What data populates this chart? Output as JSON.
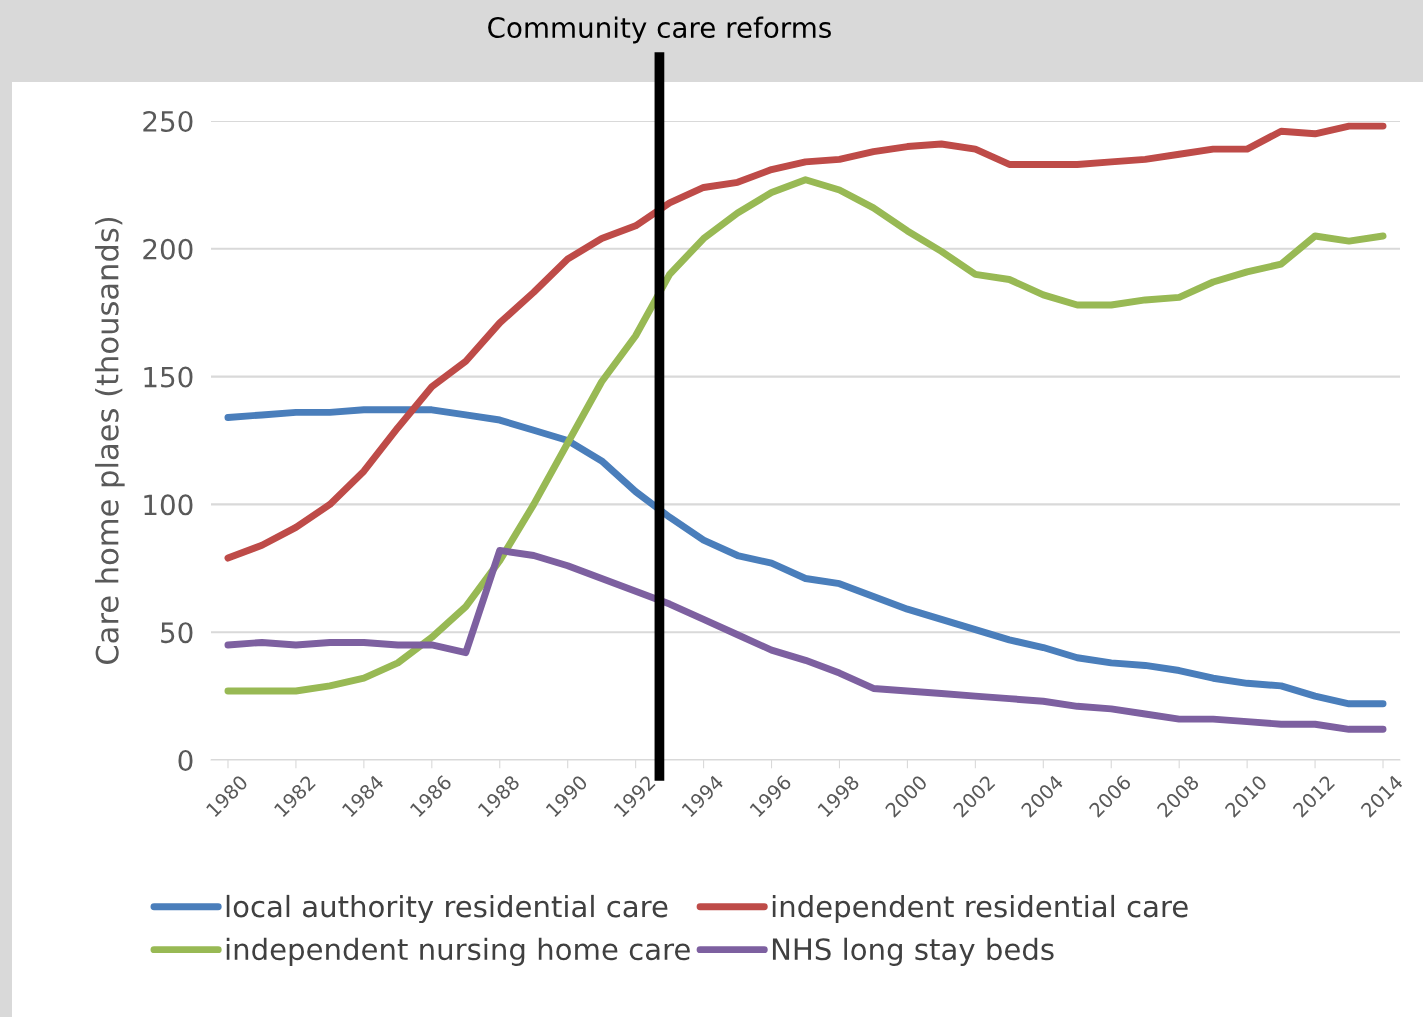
{
  "chart_data": {
    "type": "line",
    "ylabel": "Care home plaes (thousands)",
    "x": [
      1980,
      1981,
      1982,
      1983,
      1984,
      1985,
      1986,
      1987,
      1988,
      1989,
      1990,
      1991,
      1992,
      1993,
      1994,
      1995,
      1996,
      1997,
      1998,
      1999,
      2000,
      2001,
      2002,
      2003,
      2004,
      2005,
      2006,
      2007,
      2008,
      2009,
      2010,
      2011,
      2012,
      2013,
      2014
    ],
    "series": [
      {
        "name": "local authority residential care",
        "color": "#4a7ebb",
        "values": [
          134,
          135,
          136,
          136,
          137,
          137,
          137,
          135,
          133,
          129,
          125,
          117,
          105,
          95,
          86,
          80,
          77,
          71,
          69,
          64,
          59,
          55,
          51,
          47,
          44,
          40,
          38,
          37,
          35,
          32,
          30,
          29,
          25,
          22,
          22
        ]
      },
      {
        "name": "independent residential care",
        "color": "#be4b48",
        "values": [
          79,
          84,
          91,
          100,
          113,
          130,
          146,
          156,
          171,
          183,
          196,
          204,
          209,
          218,
          224,
          226,
          231,
          234,
          235,
          238,
          240,
          241,
          239,
          233,
          233,
          233,
          234,
          235,
          237,
          239,
          239,
          246,
          245,
          248,
          248
        ]
      },
      {
        "name": "independent nursing home care",
        "color": "#98b954",
        "values": [
          27,
          27,
          27,
          29,
          32,
          38,
          48,
          60,
          78,
          100,
          124,
          148,
          166,
          190,
          204,
          214,
          222,
          227,
          223,
          216,
          207,
          199,
          190,
          188,
          182,
          178,
          178,
          180,
          181,
          187,
          191,
          194,
          205,
          203,
          205
        ]
      },
      {
        "name": "NHS long stay beds",
        "color": "#7d60a0",
        "values": [
          45,
          46,
          45,
          46,
          46,
          45,
          45,
          42,
          82,
          80,
          76,
          71,
          66,
          61,
          55,
          49,
          43,
          39,
          34,
          28,
          27,
          26,
          25,
          24,
          23,
          21,
          20,
          18,
          16,
          16,
          15,
          14,
          14,
          12,
          12
        ]
      }
    ],
    "xlim": [
      1979.5,
      2014.5
    ],
    "xticks": [
      1980,
      1982,
      1984,
      1986,
      1988,
      1990,
      1992,
      1994,
      1996,
      1998,
      2000,
      2002,
      2004,
      2006,
      2008,
      2010,
      2012,
      2014
    ],
    "ylim": [
      0,
      250
    ],
    "yticks": [
      0,
      50,
      100,
      150,
      200,
      250
    ],
    "ref_lines": [
      {
        "axis": "x",
        "value": 1992.7,
        "label": "Community care reforms",
        "color": "#000000"
      }
    ],
    "grid": "y",
    "legend": "bottom",
    "marker": "none",
    "line_style": "solid"
  }
}
